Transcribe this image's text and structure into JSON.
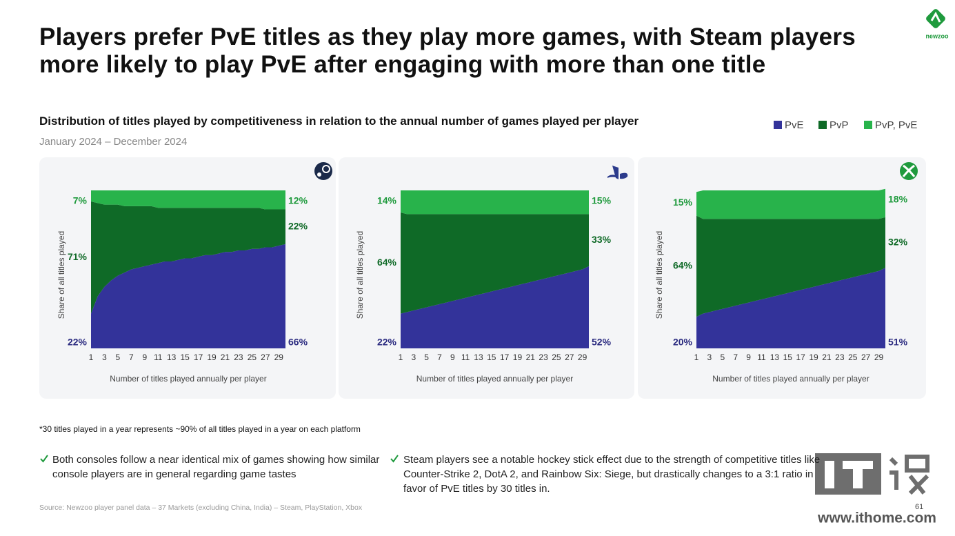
{
  "title": "Players prefer PvE titles as they play more games, with Steam players more likely to play PvE after engaging with more than one title",
  "subtitle": "Distribution of titles played by competitiveness in relation to the annual number of games played per player",
  "period": "January 2024 – December 2024",
  "footnote": "*30 titles played in a year represents ~90% of all titles played in a year on each platform",
  "bullets": [
    "Both consoles follow a near identical mix of games showing how similar console players are in general regarding game tastes",
    "Steam players see a notable hockey stick effect due to the strength of competitive titles like Counter-Strike 2, DotA 2, and Rainbow Six: Siege, but drastically changes to a 3:1 ratio in favor of PvE titles by 30 titles in."
  ],
  "source": "Source: Newzoo player panel data – 37 Markets (excluding China, India) – Steam, PlayStation, Xbox",
  "page_number": "61",
  "logo": "newzoo",
  "watermark": "www.ithome.com",
  "chart_data": [
    {
      "type": "area",
      "stacked": true,
      "x": [
        1,
        2,
        3,
        4,
        5,
        6,
        7,
        8,
        9,
        10,
        11,
        12,
        13,
        14,
        15,
        16,
        17,
        18,
        19,
        20,
        21,
        22,
        23,
        24,
        25,
        26,
        27,
        28,
        29,
        30
      ],
      "xlim": [
        1,
        30
      ],
      "xticks": [
        1,
        3,
        5,
        7,
        9,
        11,
        13,
        15,
        17,
        19,
        21,
        23,
        25,
        27,
        29
      ],
      "ylim": [
        0,
        100
      ],
      "xlabel": "Number of titles played annually per player",
      "ylabel": "Share of all titles played",
      "series": [
        {
          "name": "PvE",
          "color": "#33339a",
          "label_color": "#2b2b80",
          "values": [
            22,
            33,
            39,
            43,
            46,
            48,
            50,
            51,
            52,
            53,
            54,
            55,
            55,
            56,
            57,
            57,
            58,
            59,
            59,
            60,
            61,
            61,
            62,
            62,
            63,
            63,
            64,
            64,
            65,
            66
          ],
          "value_labels": [
            "22%",
            null,
            null,
            null,
            null,
            null,
            null,
            null,
            null,
            null,
            null,
            null,
            null,
            null,
            null,
            null,
            null,
            null,
            null,
            null,
            null,
            null,
            null,
            null,
            null,
            null,
            null,
            null,
            null,
            "66%"
          ]
        },
        {
          "name": "PvP",
          "color": "#0f6a27",
          "label_color": "#0f6a27",
          "values": [
            71,
            59,
            52,
            48,
            45,
            42,
            40,
            39,
            38,
            37,
            35,
            34,
            34,
            33,
            32,
            32,
            31,
            30,
            30,
            29,
            28,
            28,
            27,
            27,
            26,
            26,
            24,
            24,
            23,
            22
          ],
          "value_labels": [
            "71%",
            null,
            null,
            null,
            null,
            null,
            null,
            null,
            null,
            null,
            null,
            null,
            null,
            null,
            null,
            null,
            null,
            null,
            null,
            null,
            null,
            null,
            null,
            null,
            null,
            null,
            null,
            null,
            null,
            "22%"
          ]
        },
        {
          "name": "PvP, PvE",
          "color": "#28b34b",
          "label_color": "#1f9a3d",
          "values": [
            7,
            8,
            9,
            9,
            9,
            10,
            10,
            10,
            10,
            10,
            11,
            11,
            11,
            11,
            11,
            11,
            11,
            11,
            11,
            11,
            11,
            11,
            11,
            11,
            11,
            11,
            12,
            12,
            12,
            12
          ],
          "value_labels": [
            "7%",
            null,
            null,
            null,
            null,
            null,
            null,
            null,
            null,
            null,
            null,
            null,
            null,
            null,
            null,
            null,
            null,
            null,
            null,
            null,
            null,
            null,
            null,
            null,
            null,
            null,
            null,
            null,
            null,
            "12%"
          ]
        }
      ]
    },
    {
      "type": "area",
      "stacked": true,
      "x": [
        1,
        2,
        3,
        4,
        5,
        6,
        7,
        8,
        9,
        10,
        11,
        12,
        13,
        14,
        15,
        16,
        17,
        18,
        19,
        20,
        21,
        22,
        23,
        24,
        25,
        26,
        27,
        28,
        29,
        30
      ],
      "xlim": [
        1,
        30
      ],
      "xticks": [
        1,
        3,
        5,
        7,
        9,
        11,
        13,
        15,
        17,
        19,
        21,
        23,
        25,
        27,
        29
      ],
      "ylim": [
        0,
        100
      ],
      "xlabel": "Number of titles played annually per player",
      "ylabel": "Share of all titles played",
      "series": [
        {
          "color": "#33339a",
          "label_color": "#2b2b80",
          "values": [
            22,
            23,
            24,
            25,
            26,
            27,
            28,
            29,
            30,
            31,
            32,
            33,
            34,
            35,
            36,
            37,
            38,
            39,
            40,
            41,
            42,
            43,
            44,
            45,
            46,
            47,
            48,
            49,
            50,
            52
          ],
          "value_labels": [
            "22%",
            null,
            null,
            null,
            null,
            null,
            null,
            null,
            null,
            null,
            null,
            null,
            null,
            null,
            null,
            null,
            null,
            null,
            null,
            null,
            null,
            null,
            null,
            null,
            null,
            null,
            null,
            null,
            null,
            "52%"
          ]
        },
        {
          "color": "#0f6a27",
          "label_color": "#0f6a27",
          "values": [
            64,
            62,
            61,
            60,
            59,
            58,
            57,
            56,
            55,
            54,
            53,
            52,
            51,
            50,
            49,
            48,
            47,
            46,
            45,
            44,
            43,
            42,
            41,
            40,
            39,
            38,
            37,
            36,
            35,
            33
          ],
          "value_labels": [
            "64%",
            null,
            null,
            null,
            null,
            null,
            null,
            null,
            null,
            null,
            null,
            null,
            null,
            null,
            null,
            null,
            null,
            null,
            null,
            null,
            null,
            null,
            null,
            null,
            null,
            null,
            null,
            null,
            null,
            "33%"
          ]
        },
        {
          "color": "#28b34b",
          "label_color": "#1f9a3d",
          "values": [
            14,
            15,
            15,
            15,
            15,
            15,
            15,
            15,
            15,
            15,
            15,
            15,
            15,
            15,
            15,
            15,
            15,
            15,
            15,
            15,
            15,
            15,
            15,
            15,
            15,
            15,
            15,
            15,
            15,
            15
          ],
          "value_labels": [
            "14%",
            null,
            null,
            null,
            null,
            null,
            null,
            null,
            null,
            null,
            null,
            null,
            null,
            null,
            null,
            null,
            null,
            null,
            null,
            null,
            null,
            null,
            null,
            null,
            null,
            null,
            null,
            null,
            null,
            "15%"
          ]
        }
      ]
    },
    {
      "type": "area",
      "stacked": true,
      "x": [
        1,
        2,
        3,
        4,
        5,
        6,
        7,
        8,
        9,
        10,
        11,
        12,
        13,
        14,
        15,
        16,
        17,
        18,
        19,
        20,
        21,
        22,
        23,
        24,
        25,
        26,
        27,
        28,
        29,
        30
      ],
      "xlim": [
        1,
        30
      ],
      "xticks": [
        1,
        3,
        5,
        7,
        9,
        11,
        13,
        15,
        17,
        19,
        21,
        23,
        25,
        27,
        29
      ],
      "ylim": [
        0,
        100
      ],
      "xlabel": "Number of titles played annually per player",
      "ylabel": "Share of all titles played",
      "series": [
        {
          "color": "#33339a",
          "label_color": "#2b2b80",
          "values": [
            20,
            22,
            23,
            24,
            25,
            26,
            27,
            28,
            29,
            30,
            31,
            32,
            33,
            34,
            35,
            36,
            37,
            38,
            39,
            40,
            41,
            42,
            43,
            44,
            45,
            46,
            47,
            48,
            49,
            51
          ],
          "value_labels": [
            "20%",
            null,
            null,
            null,
            null,
            null,
            null,
            null,
            null,
            null,
            null,
            null,
            null,
            null,
            null,
            null,
            null,
            null,
            null,
            null,
            null,
            null,
            null,
            null,
            null,
            null,
            null,
            null,
            null,
            "51%"
          ]
        },
        {
          "color": "#0f6a27",
          "label_color": "#0f6a27",
          "values": [
            64,
            60,
            59,
            58,
            57,
            56,
            55,
            54,
            53,
            52,
            51,
            50,
            49,
            48,
            47,
            46,
            45,
            44,
            43,
            42,
            41,
            40,
            39,
            38,
            37,
            36,
            35,
            34,
            33,
            32
          ],
          "value_labels": [
            "64%",
            null,
            null,
            null,
            null,
            null,
            null,
            null,
            null,
            null,
            null,
            null,
            null,
            null,
            null,
            null,
            null,
            null,
            null,
            null,
            null,
            null,
            null,
            null,
            null,
            null,
            null,
            null,
            null,
            "32%"
          ]
        },
        {
          "color": "#28b34b",
          "label_color": "#1f9a3d",
          "values": [
            15,
            18,
            18,
            18,
            18,
            18,
            18,
            18,
            18,
            18,
            18,
            18,
            18,
            18,
            18,
            18,
            18,
            18,
            18,
            18,
            18,
            18,
            18,
            18,
            18,
            18,
            18,
            18,
            18,
            18
          ],
          "value_labels": [
            "15%",
            null,
            null,
            null,
            null,
            null,
            null,
            null,
            null,
            null,
            null,
            null,
            null,
            null,
            null,
            null,
            null,
            null,
            null,
            null,
            null,
            null,
            null,
            null,
            null,
            null,
            null,
            null,
            null,
            "18%"
          ]
        }
      ]
    }
  ]
}
